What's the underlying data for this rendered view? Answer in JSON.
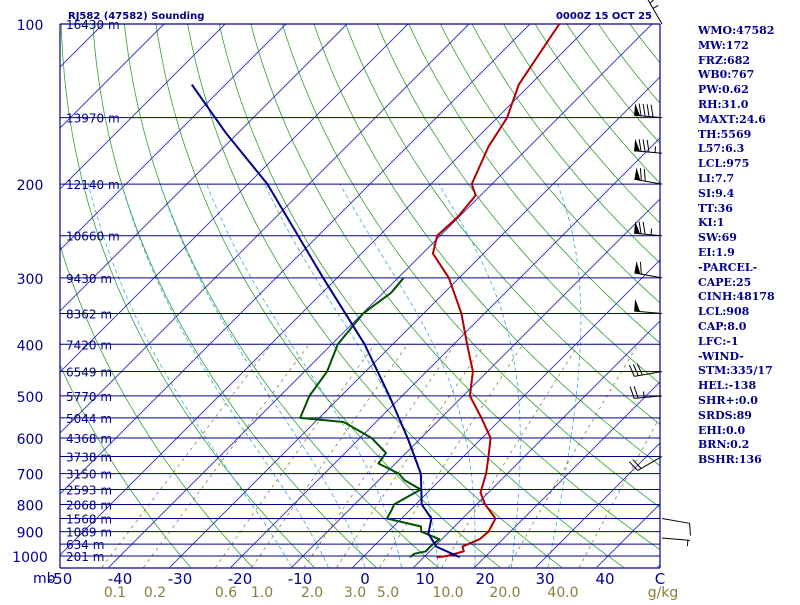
{
  "chart_data": {
    "type": "line",
    "title": "RJ582 (47582) Sounding",
    "timestamp": "0000Z 15 OCT 25",
    "yaxis_label": "mb",
    "pressure_ticks": [
      100,
      200,
      300,
      400,
      500,
      600,
      700,
      800,
      900,
      1000
    ],
    "temperature_ticks": [
      "-50",
      "-40",
      "-30",
      "-20",
      "-10",
      "0",
      "10",
      "20",
      "30",
      "40",
      "C"
    ],
    "mixing_ratio_ticks": [
      "0.1",
      "0.2",
      "0.6",
      "1.0",
      "2.0",
      "3.0",
      "5.0",
      "10.0",
      "20.0",
      "40.0",
      "g/kg"
    ],
    "height_labels": [
      {
        "p": 100,
        "label": "16430 m"
      },
      {
        "p": 150,
        "label": "13970 m"
      },
      {
        "p": 200,
        "label": "12140 m"
      },
      {
        "p": 250,
        "label": "10660 m"
      },
      {
        "p": 300,
        "label": "9430 m"
      },
      {
        "p": 350,
        "label": "8362 m"
      },
      {
        "p": 400,
        "label": "7420 m"
      },
      {
        "p": 450,
        "label": "6549 m"
      },
      {
        "p": 500,
        "label": "5770 m"
      },
      {
        "p": 550,
        "label": "5044 m"
      },
      {
        "p": 600,
        "label": "4368 m"
      },
      {
        "p": 650,
        "label": "3738 m"
      },
      {
        "p": 700,
        "label": "3150 m"
      },
      {
        "p": 750,
        "label": "2593 m"
      },
      {
        "p": 800,
        "label": "2068 m"
      },
      {
        "p": 850,
        "label": "1568 m"
      },
      {
        "p": 900,
        "label": "1089 m"
      },
      {
        "p": 950,
        "label": "634 m"
      },
      {
        "p": 1000,
        "label": "201 m"
      }
    ],
    "series": [
      {
        "name": "Temperature",
        "color": "#b20000",
        "points": [
          [
            1005,
            12.1
          ],
          [
            1000,
            13.6
          ],
          [
            980,
            15.6
          ],
          [
            960,
            14.6
          ],
          [
            930,
            16.2
          ],
          [
            900,
            16.4
          ],
          [
            850,
            15.4
          ],
          [
            800,
            11.4
          ],
          [
            760,
            8.7
          ],
          [
            700,
            6.5
          ],
          [
            650,
            4.1
          ],
          [
            600,
            1.4
          ],
          [
            550,
            -3.4
          ],
          [
            500,
            -8.9
          ],
          [
            450,
            -12.4
          ],
          [
            400,
            -17.8
          ],
          [
            350,
            -23.8
          ],
          [
            300,
            -31.7
          ],
          [
            270,
            -38.3
          ],
          [
            250,
            -40.5
          ],
          [
            230,
            -40.2
          ],
          [
            210,
            -40.8
          ],
          [
            200,
            -43.3
          ],
          [
            170,
            -46.7
          ],
          [
            150,
            -48.4
          ],
          [
            130,
            -51.9
          ],
          [
            100,
            -55.2
          ]
        ]
      },
      {
        "name": "Dewpoint",
        "color": "#005000",
        "points": [
          [
            1005,
            7.7
          ],
          [
            990,
            7.9
          ],
          [
            980,
            9.4
          ],
          [
            960,
            9.3
          ],
          [
            930,
            9.6
          ],
          [
            900,
            5.4
          ],
          [
            880,
            4.5
          ],
          [
            850,
            -2.4
          ],
          [
            820,
            -3.0
          ],
          [
            800,
            -3.5
          ],
          [
            780,
            -2.8
          ],
          [
            750,
            -1.6
          ],
          [
            720,
            -5.8
          ],
          [
            700,
            -7.8
          ],
          [
            670,
            -12.8
          ],
          [
            640,
            -13.3
          ],
          [
            600,
            -18.1
          ],
          [
            560,
            -25.3
          ],
          [
            550,
            -33.1
          ],
          [
            500,
            -35.2
          ],
          [
            450,
            -36.3
          ],
          [
            400,
            -39.0
          ],
          [
            350,
            -39.9
          ],
          [
            320,
            -38.7
          ],
          [
            300,
            -39.1
          ]
        ]
      },
      {
        "name": "Parcel",
        "color": "#00008b",
        "points": [
          [
            1005,
            15.9
          ],
          [
            960,
            10.3
          ],
          [
            908,
            6.9
          ],
          [
            850,
            4.9
          ],
          [
            800,
            1.0
          ],
          [
            700,
            -4.2
          ],
          [
            600,
            -12.2
          ],
          [
            500,
            -22.1
          ],
          [
            400,
            -34.6
          ],
          [
            300,
            -52.3
          ],
          [
            200,
            -76.8
          ],
          [
            160,
            -92.1
          ],
          [
            130,
            -105.5
          ]
        ]
      }
    ],
    "wind_barbs": [
      {
        "p": 100,
        "dir": 330,
        "spd": 25
      },
      {
        "p": 150,
        "dir": 275,
        "spd": 90
      },
      {
        "p": 175,
        "dir": 275,
        "spd": 85
      },
      {
        "p": 200,
        "dir": 280,
        "spd": 70
      },
      {
        "p": 250,
        "dir": 275,
        "spd": 75
      },
      {
        "p": 300,
        "dir": 280,
        "spd": 60
      },
      {
        "p": 350,
        "dir": 275,
        "spd": 50
      },
      {
        "p": 450,
        "dir": 260,
        "spd": 30
      },
      {
        "p": 500,
        "dir": 265,
        "spd": 25
      },
      {
        "p": 650,
        "dir": 240,
        "spd": 20
      },
      {
        "p": 850,
        "dir": 100,
        "spd": 10
      },
      {
        "p": 925,
        "dir": 95,
        "spd": 5
      }
    ],
    "x_range": [
      -50,
      50
    ],
    "y_range": [
      100,
      1050
    ]
  },
  "indices": [
    "WMO:47582",
    "MW:172",
    "FRZ:682",
    "WB0:767",
    "PW:0.62",
    "RH:31.0",
    "MAXT:24.6",
    "TH:5569",
    "L57:6.3",
    "LCL:975",
    "LI:7.7",
    "SI:9.4",
    "TT:36",
    "KI:1",
    "SW:69",
    "EI:1.9",
    "-PARCEL-",
    "CAPE:25",
    "CINH:48178",
    "LCL:908",
    "CAP:8.0",
    "LFC:-1",
    "-WIND-",
    "STM:335/17",
    "HEL:-138",
    "SHR+:0.0",
    "SRDS:89",
    "EHI:0.0",
    "BRN:0.2",
    "BSHR:136"
  ]
}
